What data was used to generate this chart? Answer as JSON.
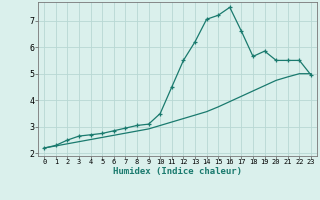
{
  "xlabel": "Humidex (Indice chaleur)",
  "x_values": [
    0,
    1,
    2,
    3,
    4,
    5,
    6,
    7,
    8,
    9,
    10,
    11,
    12,
    13,
    14,
    15,
    16,
    17,
    18,
    19,
    20,
    21,
    22,
    23
  ],
  "y_curve": [
    2.2,
    2.3,
    2.5,
    2.65,
    2.7,
    2.75,
    2.85,
    2.95,
    3.05,
    3.1,
    3.5,
    4.5,
    5.5,
    6.2,
    7.05,
    7.2,
    7.5,
    6.6,
    5.65,
    5.85,
    5.5,
    5.5,
    5.5,
    4.95
  ],
  "y_line": [
    2.2,
    2.28,
    2.36,
    2.44,
    2.52,
    2.6,
    2.68,
    2.76,
    2.84,
    2.92,
    3.05,
    3.18,
    3.31,
    3.44,
    3.57,
    3.75,
    3.95,
    4.15,
    4.35,
    4.55,
    4.75,
    4.88,
    5.0,
    5.0
  ],
  "line_color": "#1a7a6e",
  "bg_color": "#daf0ec",
  "grid_color": "#b8d8d4",
  "ylim": [
    1.9,
    7.7
  ],
  "xlim": [
    -0.5,
    23.5
  ],
  "yticks": [
    2,
    3,
    4,
    5,
    6,
    7
  ],
  "xticks": [
    0,
    1,
    2,
    3,
    4,
    5,
    6,
    7,
    8,
    9,
    10,
    11,
    12,
    13,
    14,
    15,
    16,
    17,
    18,
    19,
    20,
    21,
    22,
    23
  ]
}
